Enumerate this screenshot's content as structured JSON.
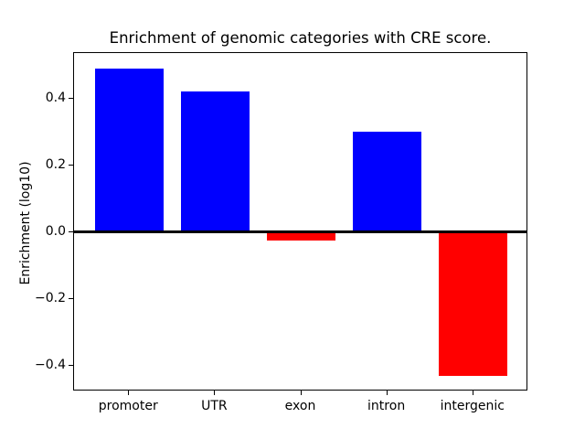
{
  "figure": {
    "kind": "matplotlib-figure"
  },
  "chart_data": {
    "type": "bar",
    "title": "Enrichment of genomic categories with CRE score.",
    "xlabel": "",
    "ylabel": "Enrichment (log10)",
    "categories": [
      "promoter",
      "UTR",
      "exon",
      "intron",
      "intergenic"
    ],
    "values": [
      0.49,
      0.42,
      -0.025,
      0.3,
      -0.43
    ],
    "bar_colors": {
      "positive": "#0000ff",
      "negative": "#ff0000"
    },
    "axis_color": "#000000",
    "background_color": "#ffffff",
    "ylim": [
      -0.476,
      0.536
    ],
    "yticks": [
      -0.4,
      -0.2,
      0.0,
      0.2,
      0.4
    ],
    "ytick_labels": [
      "−0.4",
      "−0.2",
      "0.0",
      "0.2",
      "0.4"
    ],
    "bar_width_fraction": 0.8,
    "x_margin_units": 0.64,
    "grid": false,
    "zero_line": true,
    "legend": null
  }
}
